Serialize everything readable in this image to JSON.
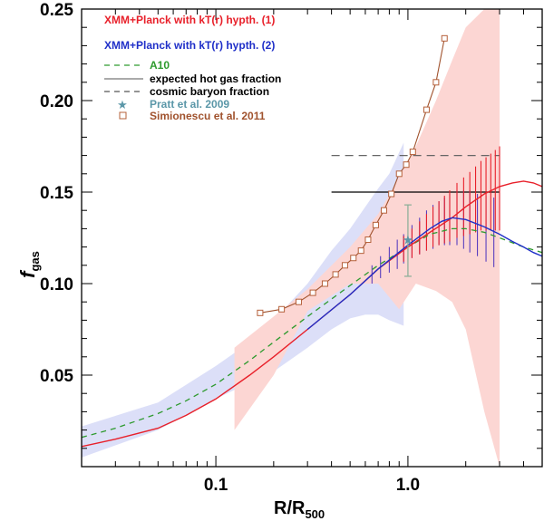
{
  "chart_data": {
    "type": "line",
    "xscale": "log",
    "xlim": [
      0.02,
      5.0
    ],
    "ylim": [
      0.0,
      0.25
    ],
    "xlabel_main": "R/R",
    "xlabel_sub": "500",
    "ylabel_main": "f",
    "ylabel_sub": "gas",
    "xticks": [
      {
        "value": 0.1,
        "label": "0.1"
      },
      {
        "value": 1.0,
        "label": "1.0"
      }
    ],
    "yticks": [
      {
        "value": 0.05,
        "label": "0.05"
      },
      {
        "value": 0.1,
        "label": "0.10"
      },
      {
        "value": 0.15,
        "label": "0.15"
      },
      {
        "value": 0.2,
        "label": "0.20"
      },
      {
        "value": 0.25,
        "label": "0.25"
      }
    ],
    "legend": [
      {
        "label": "XMM+Planck with kT(r) hypth. (1)",
        "color": "#e8202a",
        "style": "text"
      },
      {
        "label": "XMM+Planck with kT(r) hypth. (2)",
        "color": "#1f2fc8",
        "style": "text"
      },
      {
        "label": "A10",
        "color": "#2e9a2e",
        "style": "dashed"
      },
      {
        "label": "expected hot gas fraction",
        "color": "#000000",
        "style": "solid-thin"
      },
      {
        "label": "cosmic baryon fraction",
        "color": "#000000",
        "style": "dashed"
      },
      {
        "label": "Pratt et al. 2009",
        "color": "#5b97a8",
        "style": "star"
      },
      {
        "label": "Simionescu et al. 2011",
        "color": "#a0522d",
        "style": "square"
      }
    ],
    "bands": [
      {
        "name": "hypothesis-2-band",
        "color": "#dcdff8",
        "x": [
          0.02,
          0.05,
          0.1,
          0.15,
          0.2,
          0.3,
          0.4,
          0.5,
          0.6,
          0.7,
          0.8,
          0.95,
          0.95,
          0.8,
          0.7,
          0.6,
          0.5,
          0.4,
          0.3,
          0.2,
          0.15,
          0.1,
          0.05,
          0.02
        ],
        "y": [
          0.022,
          0.035,
          0.055,
          0.068,
          0.08,
          0.1,
          0.118,
          0.13,
          0.142,
          0.152,
          0.16,
          0.177,
          0.077,
          0.08,
          0.083,
          0.083,
          0.081,
          0.075,
          0.065,
          0.052,
          0.046,
          0.037,
          0.02,
          0.005
        ]
      },
      {
        "name": "hypothesis-1-band",
        "color": "#fcd6d3",
        "x": [
          0.125,
          0.2,
          0.3,
          0.5,
          0.7,
          0.9,
          1.1,
          1.4,
          1.7,
          2.0,
          2.5,
          3.0,
          3.0,
          2.5,
          2.0,
          1.7,
          1.4,
          1.1,
          0.9,
          0.7,
          0.5,
          0.3,
          0.2,
          0.125
        ],
        "y": [
          0.065,
          0.082,
          0.097,
          0.12,
          0.138,
          0.158,
          0.175,
          0.2,
          0.222,
          0.24,
          0.25,
          0.25,
          0.0,
          0.03,
          0.075,
          0.09,
          0.096,
          0.1,
          0.086,
          0.1,
          0.1,
          0.085,
          0.05,
          0.02
        ]
      }
    ],
    "series": [
      {
        "name": "A10",
        "color": "#2e9a2e",
        "dash": "6,5",
        "width": 1.3,
        "x": [
          0.02,
          0.03,
          0.05,
          0.07,
          0.1,
          0.15,
          0.2,
          0.3,
          0.5,
          0.7,
          1.0,
          1.3,
          1.7,
          2.0,
          2.5,
          3.0,
          4.0,
          5.0
        ],
        "y": [
          0.016,
          0.021,
          0.029,
          0.036,
          0.045,
          0.058,
          0.068,
          0.082,
          0.099,
          0.11,
          0.12,
          0.127,
          0.13,
          0.13,
          0.128,
          0.125,
          0.12,
          0.117
        ]
      },
      {
        "name": "hypothesis-1-line",
        "color": "#e8202a",
        "dash": "",
        "width": 1.4,
        "x": [
          0.02,
          0.03,
          0.05,
          0.07,
          0.1,
          0.15,
          0.2,
          0.3,
          0.5,
          0.7,
          1.0,
          1.3,
          1.7,
          2.0,
          2.5,
          3.0,
          3.5,
          4.0,
          4.5,
          5.0
        ],
        "y": [
          0.011,
          0.015,
          0.021,
          0.028,
          0.037,
          0.05,
          0.06,
          0.075,
          0.094,
          0.108,
          0.12,
          0.128,
          0.136,
          0.142,
          0.149,
          0.153,
          0.155,
          0.156,
          0.155,
          0.153
        ]
      },
      {
        "name": "hypothesis-2-line",
        "color": "#1f2fc8",
        "dash": "",
        "width": 1.4,
        "x": [
          0.3,
          0.5,
          0.7,
          1.0,
          1.3,
          1.5,
          1.7,
          2.0,
          2.5,
          3.0,
          3.5,
          4.0,
          4.5,
          5.0
        ],
        "y": [
          0.075,
          0.094,
          0.108,
          0.121,
          0.13,
          0.134,
          0.136,
          0.135,
          0.131,
          0.127,
          0.123,
          0.12,
          0.117,
          0.115
        ]
      }
    ],
    "simionescu": {
      "x": [
        0.17,
        0.22,
        0.27,
        0.32,
        0.37,
        0.42,
        0.47,
        0.52,
        0.57,
        0.62,
        0.68,
        0.75,
        0.82,
        0.9,
        0.98,
        1.06,
        1.25,
        1.4,
        1.55
      ],
      "y": [
        0.084,
        0.086,
        0.09,
        0.095,
        0.1,
        0.105,
        0.11,
        0.114,
        0.118,
        0.124,
        0.132,
        0.14,
        0.149,
        0.16,
        0.165,
        0.172,
        0.195,
        0.21,
        0.234
      ]
    },
    "pratt": {
      "x": 1.0,
      "y": 0.124,
      "ylow": 0.104,
      "yhigh": 0.143
    },
    "reference_lines": [
      {
        "name": "cosmic-baryon-fraction-line",
        "y": 0.17,
        "xmin": 0.4,
        "xmax": 3.0,
        "color": "#666666",
        "dash": "9,6"
      },
      {
        "name": "expected-hot-gas-fraction-line",
        "y": 0.15,
        "xmin": 0.4,
        "xmax": 3.0,
        "color": "#000000",
        "dash": ""
      }
    ],
    "errorbars_h1": {
      "color": "#e8202a",
      "x": [
        0.95,
        1.05,
        1.15,
        1.25,
        1.35,
        1.45,
        1.55,
        1.65,
        1.8,
        1.95,
        2.1,
        2.25,
        2.4,
        2.55,
        2.7,
        2.85,
        3.0
      ],
      "yc": [
        0.119,
        0.122,
        0.125,
        0.128,
        0.131,
        0.133,
        0.135,
        0.137,
        0.14,
        0.142,
        0.144,
        0.146,
        0.148,
        0.149,
        0.15,
        0.151,
        0.152
      ],
      "half": [
        0.007,
        0.008,
        0.009,
        0.01,
        0.011,
        0.012,
        0.013,
        0.014,
        0.015,
        0.016,
        0.017,
        0.018,
        0.019,
        0.02,
        0.021,
        0.022,
        0.023
      ]
    },
    "errorbars_h2": {
      "color": "#5a3fbf",
      "x": [
        0.65,
        0.72,
        0.8,
        0.88,
        0.95,
        1.05,
        1.15,
        1.25,
        1.35,
        1.45,
        1.55,
        1.65,
        1.8,
        1.95,
        2.1,
        2.3,
        2.55,
        2.8
      ],
      "yc": [
        0.105,
        0.109,
        0.113,
        0.116,
        0.119,
        0.123,
        0.126,
        0.129,
        0.131,
        0.133,
        0.134,
        0.135,
        0.136,
        0.135,
        0.134,
        0.132,
        0.13,
        0.128
      ],
      "half": [
        0.005,
        0.006,
        0.007,
        0.008,
        0.008,
        0.009,
        0.01,
        0.011,
        0.012,
        0.012,
        0.013,
        0.014,
        0.015,
        0.016,
        0.017,
        0.017,
        0.018,
        0.019
      ]
    }
  }
}
